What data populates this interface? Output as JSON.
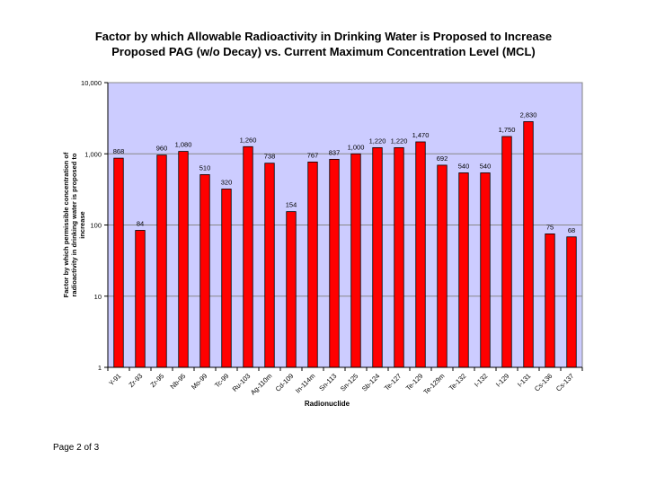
{
  "page": {
    "title_line1": "Factor by which Allowable Radioactivity in Drinking Water is Proposed to Increase",
    "title_line2": "Proposed PAG (w/o Decay) vs. Current Maximum Concentration Level (MCL)",
    "footer": "Page 2 of 3"
  },
  "colors": {
    "plot_bg": "#ccccff",
    "bar_fill": "#ff0000",
    "bar_stroke": "#000000",
    "gridline": "#888888"
  },
  "chart_data": {
    "type": "bar",
    "title": "Factor by which Allowable Radioactivity in Drinking Water is Proposed to Increase / Proposed PAG (w/o Decay) vs. Current Maximum Concentration Level (MCL)",
    "xlabel": "Radionuclide",
    "ylabel": "Factor by which permissible concentration of radioactivity in drinking water is proposed to increase",
    "yscale": "log",
    "ylim": [
      1,
      10000
    ],
    "yticks": [
      1,
      10,
      100,
      1000,
      10000
    ],
    "ytick_labels": [
      "1",
      "10",
      "100",
      "1,000",
      "10,000"
    ],
    "grid": "horizontal",
    "categories": [
      "Y-91",
      "Zr-93",
      "Zr-95",
      "Nb-95",
      "Mo-99",
      "Tc-99",
      "Ru-103",
      "Ag-110m",
      "Cd-109",
      "In-114m",
      "Sn-113",
      "Sn-125",
      "Sb-124",
      "Te-127",
      "Te-129",
      "Te-129m",
      "Te-132",
      "I-132",
      "I-129",
      "I-131",
      "Cs-136",
      "Cs-137"
    ],
    "values": [
      868,
      84,
      960,
      1080,
      510,
      320,
      1260,
      738,
      154,
      767,
      837,
      1000,
      1220,
      1220,
      1470,
      692,
      540,
      540,
      1750,
      2830,
      75,
      68
    ],
    "value_labels": [
      "868",
      "84",
      "960",
      "1,080",
      "510",
      "320",
      "1,260",
      "738",
      "154",
      "767",
      "837",
      "1,000",
      "1,220",
      "1,220",
      "1,470",
      "692",
      "540",
      "540",
      "1,750",
      "2,830",
      "75",
      "68"
    ]
  }
}
